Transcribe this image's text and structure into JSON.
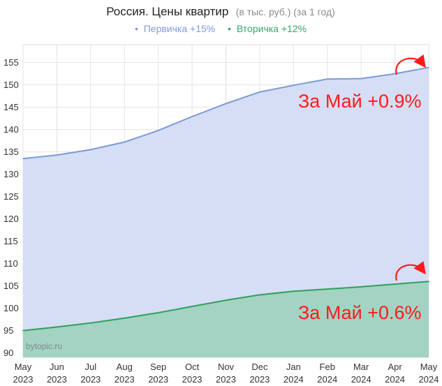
{
  "chart_data": {
    "type": "area",
    "title": "Россия. Цены квартир",
    "subtitle": "(в тыс. руб.) (за 1 год)",
    "legend": [
      {
        "marker": "•",
        "label": "Первичка +15%",
        "color": "#7f9bd8"
      },
      {
        "marker": "•",
        "label": "Вторичка +12%",
        "color": "#3aa36b"
      }
    ],
    "categories": [
      {
        "month": "May",
        "year": "2023"
      },
      {
        "month": "Jun",
        "year": "2023"
      },
      {
        "month": "Jul",
        "year": "2023"
      },
      {
        "month": "Aug",
        "year": "2023"
      },
      {
        "month": "Sep",
        "year": "2023"
      },
      {
        "month": "Oct",
        "year": "2023"
      },
      {
        "month": "Nov",
        "year": "2023"
      },
      {
        "month": "Dec",
        "year": "2023"
      },
      {
        "month": "Jan",
        "year": "2024"
      },
      {
        "month": "Feb",
        "year": "2024"
      },
      {
        "month": "Mar",
        "year": "2024"
      },
      {
        "month": "Apr",
        "year": "2024"
      },
      {
        "month": "May",
        "year": "2024"
      }
    ],
    "series": [
      {
        "name": "Первичка",
        "color": "#7c9ad6",
        "fill": "#d5def5",
        "values": [
          133.5,
          134.3,
          135.5,
          137.2,
          139.8,
          142.9,
          145.8,
          148.4,
          149.9,
          151.3,
          151.4,
          152.5,
          153.9
        ]
      },
      {
        "name": "Вторичка",
        "color": "#2fa05a",
        "fill": "#a3d3c2",
        "values": [
          95.0,
          95.8,
          96.7,
          97.8,
          99.0,
          100.4,
          101.8,
          103.0,
          103.8,
          104.3,
          104.8,
          105.4,
          106.0
        ]
      }
    ],
    "ylim": [
      89,
      159
    ],
    "yticks": [
      90,
      95,
      100,
      105,
      110,
      115,
      120,
      125,
      130,
      135,
      140,
      145,
      150,
      155
    ],
    "grid": true,
    "annotations": [
      {
        "text": "За Май +0.9%",
        "color": "#ff1a1a"
      },
      {
        "text": "За Май +0.6%",
        "color": "#ff1a1a"
      }
    ],
    "watermark": "bytopic.ru"
  }
}
